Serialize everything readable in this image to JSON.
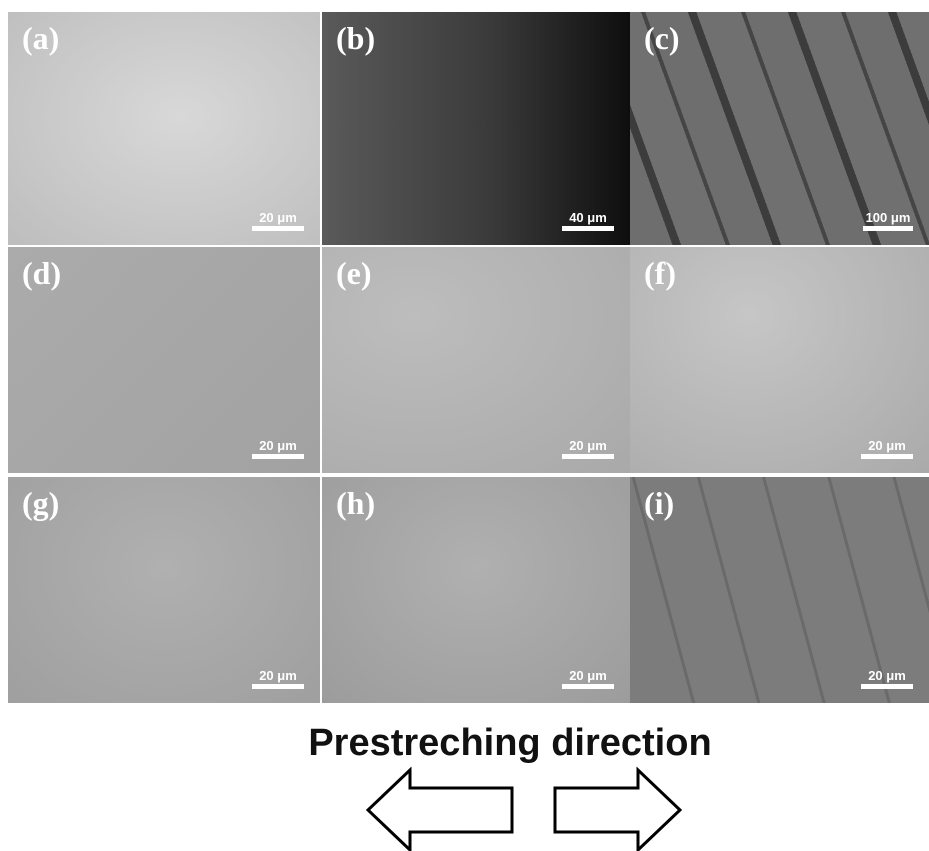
{
  "panels": [
    {
      "label": "(a)",
      "scale": "20 μm"
    },
    {
      "label": "(b)",
      "scale": "40 μm"
    },
    {
      "label": "(c)",
      "scale": "100 μm"
    },
    {
      "label": "(d)",
      "scale": "20 μm"
    },
    {
      "label": "(e)",
      "scale": "20 μm"
    },
    {
      "label": "(f)",
      "scale": "20 μm"
    },
    {
      "label": "(g)",
      "scale": "20 μm"
    },
    {
      "label": "(h)",
      "scale": "20 μm"
    },
    {
      "label": "(i)",
      "scale": "20 μm"
    }
  ],
  "caption": "Prestreching direction"
}
